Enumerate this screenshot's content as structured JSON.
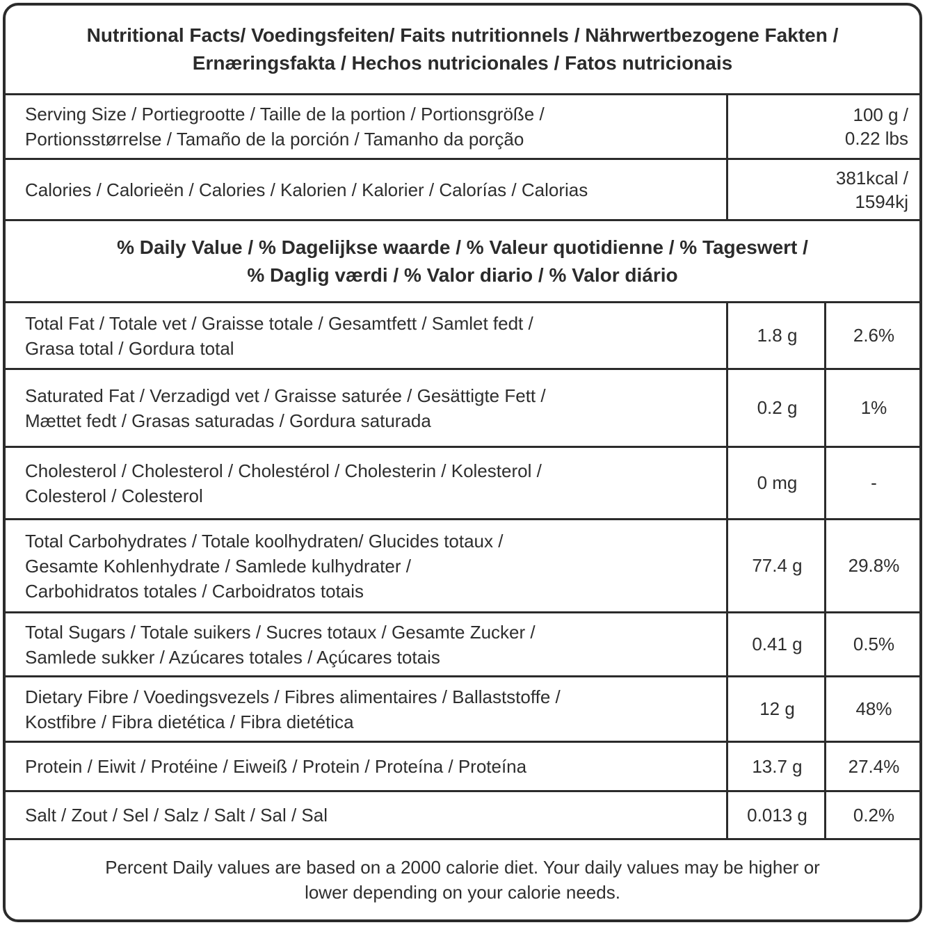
{
  "title_lines": [
    "Nutritional Facts/ Voedingsfeiten/ Faits nutritionnels / Nährwertbezogene Fakten /",
    "Ernæringsfakta / Hechos nutricionales / Fatos nutricionais"
  ],
  "serving": {
    "label_lines": [
      "Serving Size / Portiegrootte / Taille de la portion / Portionsgröße /",
      "Portionsstørrelse / Tamaño de la porción / Tamanho da porção"
    ],
    "value_lines": [
      "100 g /",
      "0.22 lbs"
    ]
  },
  "calories": {
    "label_lines": [
      "Calories / Calorieën / Calories / Kalorien / Kalorier / Calorías / Calorias"
    ],
    "value_lines": [
      "381kcal /",
      "1594kj"
    ]
  },
  "daily_value_lines": [
    "% Daily Value / % Dagelijkse waarde / % Valeur quotidienne / % Tageswert /",
    "% Daglig værdi / % Valor diario / % Valor diário"
  ],
  "nutrients": [
    {
      "label_lines": [
        "Total Fat / Totale vet / Graisse totale / Gesamtfett / Samlet fedt /",
        "Grasa total / Gordura total"
      ],
      "amount": "1.8 g",
      "percent": "2.6%"
    },
    {
      "label_lines": [
        "Saturated Fat / Verzadigd vet / Graisse saturée / Gesättigte Fett /",
        "Mættet fedt / Grasas saturadas / Gordura saturada"
      ],
      "amount": "0.2 g",
      "percent": "1%"
    },
    {
      "label_lines": [
        "Cholesterol / Cholesterol  / Cholestérol / Cholesterin /  Kolesterol /",
        "Colesterol / Colesterol"
      ],
      "amount": "0 mg",
      "percent": "-"
    },
    {
      "label_lines": [
        "Total Carbohydrates / Totale koolhydraten/ Glucides totaux /",
        "Gesamte Kohlenhydrate / Samlede kulhydrater /",
        "Carbohidratos totales / Carboidratos totais"
      ],
      "amount": "77.4 g",
      "percent": "29.8%"
    },
    {
      "label_lines": [
        "Total Sugars / Totale suikers / Sucres totaux / Gesamte Zucker /",
        "Samlede sukker / Azúcares totales / Açúcares totais"
      ],
      "amount": "0.41 g",
      "percent": "0.5%"
    },
    {
      "label_lines": [
        "Dietary Fibre / Voedingsvezels / Fibres alimentaires / Ballaststoffe /",
        "Kostfibre / Fibra dietética / Fibra dietética"
      ],
      "amount": "12 g",
      "percent": "48%"
    },
    {
      "label_lines": [
        "Protein / Eiwit / Protéine / Eiweiß / Protein / Proteína / Proteína"
      ],
      "amount": "13.7 g",
      "percent": "27.4%"
    },
    {
      "label_lines": [
        "Salt / Zout / Sel / Salz / Salt / Sal / Sal"
      ],
      "amount": "0.013 g",
      "percent": "0.2%"
    }
  ],
  "footer_lines": [
    "Percent Daily values are based on a 2000 calorie diet. Your daily values may be higher or",
    "lower depending on your calorie needs."
  ]
}
